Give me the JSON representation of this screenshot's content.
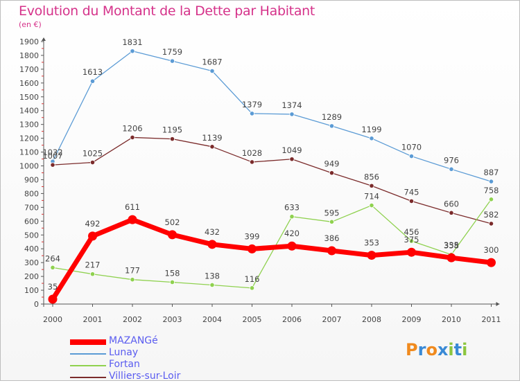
{
  "header": {
    "title": "Evolution du Montant de la Dette par Habitant",
    "subtitle": "(en €)"
  },
  "logo": {
    "letters": [
      "P",
      "r",
      "o",
      "x",
      "i",
      "t",
      "i"
    ],
    "colors": [
      "#f08a1e",
      "#3a8ad6",
      "#f08a1e",
      "#3a8ad6",
      "#8cc63f",
      "#3a8ad6",
      "#8cc63f"
    ]
  },
  "chart_data": {
    "type": "line",
    "title": "Evolution du Montant de la Dette par Habitant",
    "subtitle": "(en €)",
    "xlabel": "",
    "ylabel": "",
    "x": [
      "2000",
      "2001",
      "2002",
      "2003",
      "2004",
      "2005",
      "2006",
      "2007",
      "2008",
      "2009",
      "2010",
      "2011"
    ],
    "ylim": [
      0,
      1900
    ],
    "yticks": [
      0,
      100,
      200,
      300,
      400,
      500,
      600,
      700,
      800,
      900,
      1000,
      1100,
      1200,
      1300,
      1400,
      1500,
      1600,
      1700,
      1800,
      1900
    ],
    "grid": false,
    "legend_position": "bottom-left",
    "series": [
      {
        "name": "MAZANGé",
        "color": "#ff0000",
        "values": [
          35,
          492,
          611,
          502,
          432,
          399,
          420,
          386,
          353,
          375,
          335,
          300
        ],
        "labels": [
          "35",
          "492",
          "611",
          "502",
          "432",
          "399",
          "420",
          "386",
          "353",
          "375",
          "335",
          "300"
        ]
      },
      {
        "name": "Lunay",
        "color": "#5b9bd5",
        "values": [
          1032,
          1613,
          1831,
          1759,
          1687,
          1379,
          1374,
          1289,
          1199,
          1070,
          976,
          887
        ],
        "labels": [
          "1032",
          "1613",
          "1831",
          "1759",
          "1687",
          "1379",
          "1374",
          "1289",
          "1199",
          "1070",
          "976",
          "887"
        ]
      },
      {
        "name": "Fortan",
        "color": "#8fd14f",
        "values": [
          264,
          217,
          177,
          158,
          138,
          116,
          633,
          595,
          714,
          456,
          358,
          758
        ],
        "labels": [
          "264",
          "217",
          "177",
          "158",
          "138",
          "116",
          "633",
          "595",
          "714",
          "456",
          "358",
          "758"
        ]
      },
      {
        "name": "Villiers-sur-Loir",
        "color": "#7b2b2b",
        "values": [
          1007,
          1025,
          1206,
          1195,
          1139,
          1028,
          1049,
          949,
          856,
          745,
          660,
          582
        ],
        "labels": [
          "1007",
          "1025",
          "1206",
          "1195",
          "1139",
          "1028",
          "1049",
          "949",
          "856",
          "745",
          "660",
          "582"
        ]
      }
    ]
  }
}
